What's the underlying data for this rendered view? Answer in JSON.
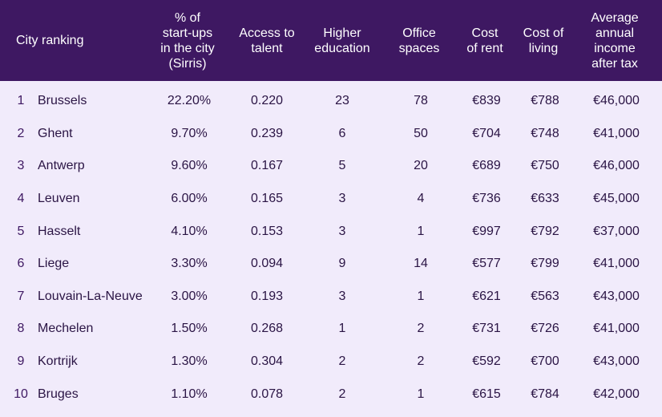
{
  "header": {
    "city_ranking": "City ranking",
    "startups": "% of\nstart-ups\nin the city\n(Sirris)",
    "talent": "Access to\ntalent",
    "education": "Higher\neducation",
    "office": "Office\nspaces",
    "rent": "Cost\nof rent",
    "living": "Cost of\nliving",
    "income": "Average\nannual\nincome\nafter tax"
  },
  "rows": [
    {
      "rank": "1",
      "city": "Brussels",
      "startups": "22.20%",
      "talent": "0.220",
      "education": "23",
      "office": "78",
      "rent": "€839",
      "living": "€788",
      "income": "€46,000"
    },
    {
      "rank": "2",
      "city": "Ghent",
      "startups": "9.70%",
      "talent": "0.239",
      "education": "6",
      "office": "50",
      "rent": "€704",
      "living": "€748",
      "income": "€41,000"
    },
    {
      "rank": "3",
      "city": "Antwerp",
      "startups": "9.60%",
      "talent": "0.167",
      "education": "5",
      "office": "20",
      "rent": "€689",
      "living": "€750",
      "income": "€46,000"
    },
    {
      "rank": "4",
      "city": "Leuven",
      "startups": "6.00%",
      "talent": "0.165",
      "education": "3",
      "office": "4",
      "rent": "€736",
      "living": "€633",
      "income": "€45,000"
    },
    {
      "rank": "5",
      "city": "Hasselt",
      "startups": "4.10%",
      "talent": "0.153",
      "education": "3",
      "office": "1",
      "rent": "€997",
      "living": "€792",
      "income": "€37,000"
    },
    {
      "rank": "6",
      "city": "Liege",
      "startups": "3.30%",
      "talent": "0.094",
      "education": "9",
      "office": "14",
      "rent": "€577",
      "living": "€799",
      "income": "€41,000"
    },
    {
      "rank": "7",
      "city": "Louvain-La-Neuve",
      "startups": "3.00%",
      "talent": "0.193",
      "education": "3",
      "office": "1",
      "rent": "€621",
      "living": "€563",
      "income": "€43,000"
    },
    {
      "rank": "8",
      "city": "Mechelen",
      "startups": "1.50%",
      "talent": "0.268",
      "education": "1",
      "office": "2",
      "rent": "€731",
      "living": "€726",
      "income": "€41,000"
    },
    {
      "rank": "9",
      "city": "Kortrijk",
      "startups": "1.30%",
      "talent": "0.304",
      "education": "2",
      "office": "2",
      "rent": "€592",
      "living": "€700",
      "income": "€43,000"
    },
    {
      "rank": "10",
      "city": "Bruges",
      "startups": "1.10%",
      "talent": "0.078",
      "education": "2",
      "office": "1",
      "rent": "€615",
      "living": "€784",
      "income": "€42,000"
    }
  ],
  "colors": {
    "header_bg": "#3e1862",
    "body_bg": "#f1ebfb",
    "text": "#2a1444"
  }
}
